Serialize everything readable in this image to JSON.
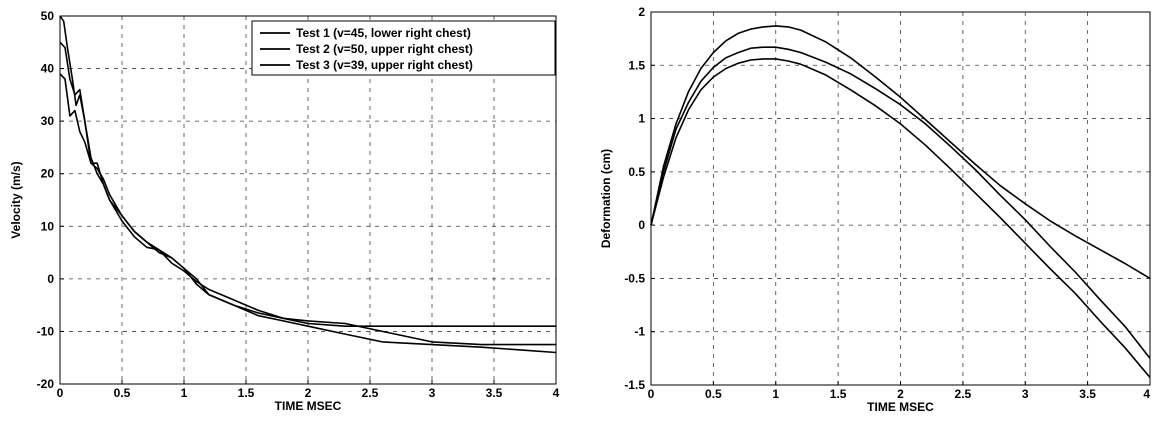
{
  "chart_data": [
    {
      "type": "line",
      "title": "",
      "xlabel": "TIME MSEC",
      "ylabel": "Velocity (m/s)",
      "xlim": [
        0,
        4
      ],
      "ylim": [
        -20,
        50
      ],
      "xticks": [
        0,
        0.5,
        1,
        1.5,
        2,
        2.5,
        3,
        3.5,
        4
      ],
      "yticks": [
        -20,
        -10,
        0,
        10,
        20,
        30,
        40,
        50
      ],
      "xtick_labels": [
        "0",
        "0.5",
        "1",
        "1.5",
        "2",
        "2.5",
        "3",
        "3.5",
        "4"
      ],
      "ytick_labels": [
        "-20",
        "-10",
        "0",
        "10",
        "20",
        "30",
        "40",
        "50"
      ],
      "grid": true,
      "legend_position": "top-right",
      "series": [
        {
          "name": "Test 1 (v=45, lower right chest)",
          "x": [
            0,
            0.04,
            0.08,
            0.12,
            0.16,
            0.2,
            0.25,
            0.3,
            0.35,
            0.4,
            0.5,
            0.6,
            0.7,
            0.8,
            0.9,
            1.0,
            1.1,
            1.2,
            1.4,
            1.6,
            1.8,
            2.0,
            2.3,
            2.6,
            3.0,
            3.4,
            3.7,
            4.0
          ],
          "y": [
            45,
            44,
            38,
            35,
            36,
            30,
            23,
            20,
            18,
            15,
            11,
            8,
            6,
            5.5,
            4,
            2,
            0,
            -3,
            -5,
            -6.5,
            -7.5,
            -8.5,
            -9,
            -9,
            -9,
            -9,
            -9,
            -9
          ]
        },
        {
          "name": "Test 2 (v=50, upper right chest)",
          "x": [
            0,
            0.03,
            0.06,
            0.1,
            0.13,
            0.16,
            0.2,
            0.25,
            0.3,
            0.35,
            0.4,
            0.5,
            0.6,
            0.7,
            0.8,
            0.9,
            1.0,
            1.1,
            1.2,
            1.4,
            1.6,
            1.8,
            2.0,
            2.3,
            2.6,
            3.0,
            3.4,
            3.7,
            4.0
          ],
          "y": [
            50,
            49,
            44,
            38,
            33,
            35,
            30,
            22,
            22,
            18,
            15,
            12,
            9,
            7,
            5,
            4,
            2,
            -1,
            -3,
            -5,
            -7,
            -8,
            -9,
            -10.5,
            -12,
            -12.5,
            -13,
            -13.5,
            -14
          ]
        },
        {
          "name": "Test 3 (v=39, upper right chest)",
          "x": [
            0,
            0.04,
            0.08,
            0.12,
            0.16,
            0.2,
            0.25,
            0.3,
            0.35,
            0.4,
            0.5,
            0.6,
            0.7,
            0.8,
            0.9,
            1.0,
            1.1,
            1.2,
            1.4,
            1.6,
            1.8,
            2.0,
            2.3,
            2.6,
            3.0,
            3.4,
            3.7,
            4.0
          ],
          "y": [
            39,
            38,
            31,
            32,
            28,
            26,
            22,
            21,
            19,
            16,
            12,
            9,
            7,
            5.5,
            3,
            1.5,
            -0.5,
            -2,
            -4,
            -6,
            -7.5,
            -8,
            -8.5,
            -10,
            -12,
            -12.5,
            -12.5,
            -12.5
          ]
        }
      ]
    },
    {
      "type": "line",
      "title": "",
      "xlabel": "TIME MSEC",
      "ylabel": "Deformation (cm)",
      "xlim": [
        0,
        4
      ],
      "ylim": [
        -1.5,
        2
      ],
      "xticks": [
        0,
        0.5,
        1,
        1.5,
        2,
        2.5,
        3,
        3.5,
        4
      ],
      "yticks": [
        -1.5,
        -1,
        -0.5,
        0,
        0.5,
        1,
        1.5,
        2
      ],
      "xtick_labels": [
        "0",
        "0.5",
        "1",
        "1.5",
        "2",
        "2.5",
        "3",
        "3.5",
        "4"
      ],
      "ytick_labels": [
        "-1.5",
        "-1",
        "-0.5",
        "0",
        "0.5",
        "1",
        "1.5",
        "2"
      ],
      "grid": true,
      "series": [
        {
          "x": [
            0,
            0.1,
            0.2,
            0.3,
            0.4,
            0.5,
            0.6,
            0.7,
            0.8,
            0.9,
            1.0,
            1.1,
            1.2,
            1.4,
            1.6,
            1.8,
            2.0,
            2.2,
            2.4,
            2.6,
            2.8,
            3.0,
            3.2,
            3.4,
            3.6,
            3.8,
            4.0
          ],
          "y": [
            0,
            0.55,
            0.95,
            1.25,
            1.47,
            1.62,
            1.73,
            1.8,
            1.84,
            1.86,
            1.87,
            1.86,
            1.83,
            1.72,
            1.57,
            1.39,
            1.2,
            0.99,
            0.78,
            0.57,
            0.37,
            0.2,
            0.04,
            -0.1,
            -0.23,
            -0.36,
            -0.5
          ]
        },
        {
          "x": [
            0,
            0.1,
            0.2,
            0.3,
            0.4,
            0.5,
            0.6,
            0.7,
            0.8,
            0.9,
            1.0,
            1.1,
            1.2,
            1.4,
            1.6,
            1.8,
            2.0,
            2.2,
            2.4,
            2.6,
            2.8,
            3.0,
            3.2,
            3.4,
            3.6,
            3.8,
            4.0
          ],
          "y": [
            0,
            0.5,
            0.9,
            1.15,
            1.35,
            1.48,
            1.57,
            1.62,
            1.66,
            1.67,
            1.67,
            1.65,
            1.62,
            1.53,
            1.42,
            1.28,
            1.13,
            0.95,
            0.74,
            0.52,
            0.28,
            0.05,
            -0.2,
            -0.44,
            -0.7,
            -0.95,
            -1.25
          ]
        },
        {
          "x": [
            0,
            0.1,
            0.2,
            0.3,
            0.4,
            0.5,
            0.6,
            0.7,
            0.8,
            0.9,
            1.0,
            1.1,
            1.2,
            1.4,
            1.6,
            1.8,
            2.0,
            2.2,
            2.4,
            2.6,
            2.8,
            3.0,
            3.2,
            3.4,
            3.6,
            3.8,
            4.0
          ],
          "y": [
            0,
            0.45,
            0.82,
            1.08,
            1.27,
            1.39,
            1.47,
            1.52,
            1.55,
            1.56,
            1.56,
            1.54,
            1.51,
            1.41,
            1.27,
            1.12,
            0.95,
            0.75,
            0.53,
            0.3,
            0.07,
            -0.17,
            -0.41,
            -0.64,
            -0.9,
            -1.15,
            -1.43
          ]
        }
      ]
    }
  ]
}
